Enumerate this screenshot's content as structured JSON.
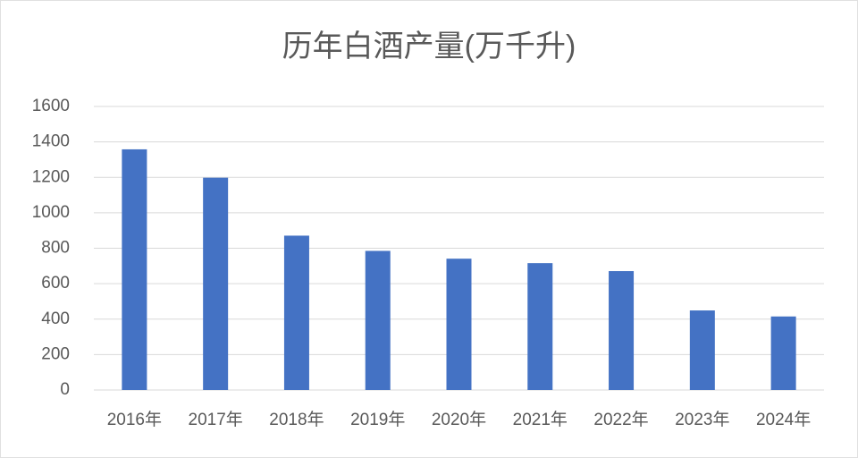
{
  "chart_data": {
    "type": "bar",
    "title": "历年白酒产量(万千升)",
    "categories": [
      "2016年",
      "2017年",
      "2018年",
      "2019年",
      "2020年",
      "2021年",
      "2022年",
      "2023年",
      "2024年"
    ],
    "values": [
      1358,
      1198,
      871,
      785,
      741,
      716,
      671,
      449,
      415
    ],
    "color": "#4472c4",
    "ylim": [
      0,
      1600
    ],
    "yticks": [
      0,
      200,
      400,
      600,
      800,
      1000,
      1200,
      1400,
      1600
    ],
    "grid": true
  }
}
